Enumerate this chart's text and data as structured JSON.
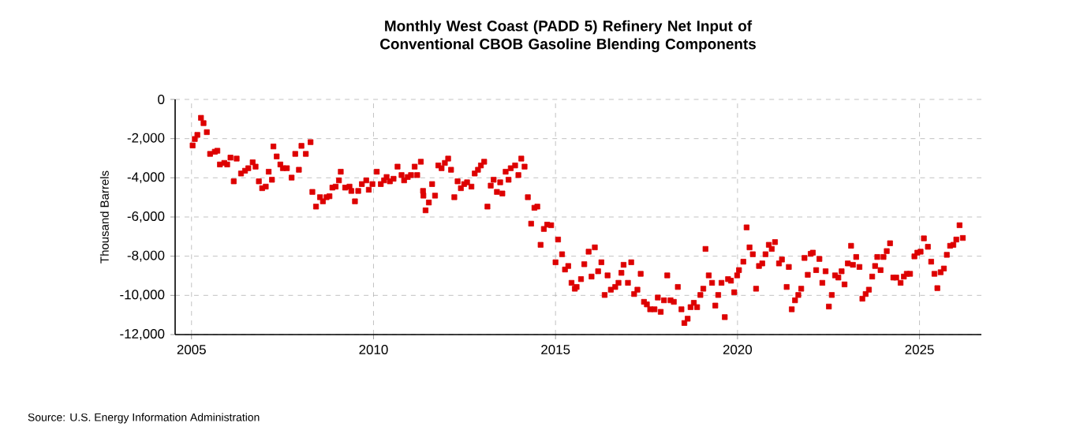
{
  "chart_data": {
    "type": "scatter",
    "title": "Monthly West Coast (PADD 5) Refinery Net Input of Conventional CBOB Gasoline Blending Components",
    "ylabel": "Thousand Barrels",
    "annotations": [
      "Source: U.S. Energy Information Administration"
    ],
    "xlim": [
      2004.55,
      2026.7
    ],
    "xticks": [
      2005,
      2010,
      2015,
      2020,
      2025
    ],
    "ylim": [
      -12000,
      0
    ],
    "yticks": [
      {
        "value": -12000,
        "label": "-12,000"
      },
      {
        "value": -10000,
        "label": "-10,000"
      },
      {
        "value": -8000,
        "label": "-8,000"
      },
      {
        "value": -6000,
        "label": "-6,000"
      },
      {
        "value": -4000,
        "label": "-4,000"
      },
      {
        "value": -2000,
        "label": "-2,000"
      },
      0
    ],
    "grid": true,
    "marker": "square",
    "series": [
      {
        "color": "#dd0000",
        "x": [
          2005.03,
          2005.09,
          2005.16,
          2005.26,
          2005.33,
          2005.42,
          2005.51,
          2005.64,
          2005.71,
          2005.78,
          2005.9,
          2005.98,
          2006.07,
          2006.16,
          2006.24,
          2006.36,
          2006.47,
          2006.56,
          2006.68,
          2006.76,
          2006.85,
          2006.94,
          2007.04,
          2007.12,
          2007.21,
          2007.25,
          2007.34,
          2007.44,
          2007.51,
          2007.62,
          2007.75,
          2007.85,
          2007.95,
          2008.02,
          2008.14,
          2008.27,
          2008.32,
          2008.42,
          2008.53,
          2008.61,
          2008.71,
          2008.79,
          2008.87,
          2008.96,
          2009.05,
          2009.1,
          2009.22,
          2009.34,
          2009.39,
          2009.49,
          2009.58,
          2009.68,
          2009.8,
          2009.87,
          2009.97,
          2010.09,
          2010.2,
          2010.29,
          2010.36,
          2010.45,
          2010.55,
          2010.66,
          2010.77,
          2010.84,
          2010.94,
          2011.03,
          2011.13,
          2011.2,
          2011.3,
          2011.36,
          2011.37,
          2011.43,
          2011.52,
          2011.61,
          2011.69,
          2011.78,
          2011.87,
          2011.96,
          2012.05,
          2012.13,
          2012.22,
          2012.31,
          2012.4,
          2012.49,
          2012.57,
          2012.69,
          2012.78,
          2012.87,
          2012.95,
          2013.04,
          2013.13,
          2013.22,
          2013.3,
          2013.39,
          2013.48,
          2013.54,
          2013.63,
          2013.71,
          2013.77,
          2013.89,
          2013.98,
          2014.06,
          2014.15,
          2014.24,
          2014.33,
          2014.42,
          2014.5,
          2014.59,
          2014.68,
          2014.77,
          2014.88,
          2015.0,
          2015.07,
          2015.18,
          2015.26,
          2015.35,
          2015.44,
          2015.53,
          2015.58,
          2015.7,
          2015.79,
          2015.91,
          2015.99,
          2016.08,
          2016.17,
          2016.26,
          2016.35,
          2016.43,
          2016.52,
          2016.64,
          2016.73,
          2016.81,
          2016.87,
          2016.99,
          2017.08,
          2017.16,
          2017.25,
          2017.34,
          2017.43,
          2017.51,
          2017.6,
          2017.72,
          2017.81,
          2017.89,
          2017.98,
          2018.07,
          2018.16,
          2018.25,
          2018.36,
          2018.46,
          2018.54,
          2018.63,
          2018.71,
          2018.8,
          2018.89,
          2018.98,
          2019.06,
          2019.12,
          2019.21,
          2019.3,
          2019.39,
          2019.47,
          2019.56,
          2019.65,
          2019.74,
          2019.82,
          2019.91,
          2019.99,
          2020.04,
          2020.16,
          2020.25,
          2020.33,
          2020.42,
          2020.51,
          2020.59,
          2020.68,
          2020.77,
          2020.86,
          2020.94,
          2021.03,
          2021.14,
          2021.22,
          2021.35,
          2021.41,
          2021.49,
          2021.58,
          2021.67,
          2021.75,
          2021.84,
          2021.93,
          2022.01,
          2022.07,
          2022.16,
          2022.25,
          2022.33,
          2022.42,
          2022.51,
          2022.59,
          2022.68,
          2022.77,
          2022.86,
          2022.94,
          2023.03,
          2023.12,
          2023.17,
          2023.26,
          2023.35,
          2023.43,
          2023.52,
          2023.61,
          2023.7,
          2023.78,
          2023.84,
          2023.93,
          2024.01,
          2024.1,
          2024.19,
          2024.28,
          2024.36,
          2024.48,
          2024.57,
          2024.65,
          2024.74,
          2024.86,
          2024.94,
          2025.03,
          2025.12,
          2025.23,
          2025.32,
          2025.41,
          2025.49,
          2025.58,
          2025.67,
          2025.75,
          2025.84,
          2025.93,
          2026.01,
          2026.1,
          2026.19
        ],
        "values": [
          -2350,
          -2020,
          -1810,
          -940,
          -1210,
          -1670,
          -2780,
          -2670,
          -2620,
          -3320,
          -3240,
          -3320,
          -2970,
          -4180,
          -3020,
          -3780,
          -3640,
          -3510,
          -3210,
          -3430,
          -4180,
          -4530,
          -4450,
          -3690,
          -4100,
          -2400,
          -2910,
          -3320,
          -3510,
          -3510,
          -3990,
          -2780,
          -3590,
          -2370,
          -2780,
          -2180,
          -4720,
          -5470,
          -4990,
          -5200,
          -4990,
          -4940,
          -4500,
          -4450,
          -4130,
          -3690,
          -4500,
          -4450,
          -4670,
          -5200,
          -4670,
          -4320,
          -4130,
          -4610,
          -4320,
          -3690,
          -4320,
          -4130,
          -3960,
          -4180,
          -4050,
          -3430,
          -3860,
          -4130,
          -3960,
          -3860,
          -3430,
          -3860,
          -3180,
          -4670,
          -4910,
          -5660,
          -5260,
          -4320,
          -4910,
          -3370,
          -3510,
          -3240,
          -3020,
          -3590,
          -4990,
          -4180,
          -4530,
          -4320,
          -4230,
          -4450,
          -3780,
          -3590,
          -3370,
          -3180,
          -5470,
          -4400,
          -4100,
          -4720,
          -4230,
          -4800,
          -3690,
          -4100,
          -3510,
          -3370,
          -3860,
          -3020,
          -3430,
          -4990,
          -6340,
          -5530,
          -5470,
          -7420,
          -6610,
          -6390,
          -6420,
          -8310,
          -7150,
          -7900,
          -8680,
          -8500,
          -9360,
          -9660,
          -9570,
          -9170,
          -8410,
          -7770,
          -9040,
          -7550,
          -8770,
          -8310,
          -9980,
          -8980,
          -9710,
          -9570,
          -9360,
          -8850,
          -8440,
          -9360,
          -8310,
          -9930,
          -9710,
          -8900,
          -10330,
          -10460,
          -10710,
          -10710,
          -10110,
          -10840,
          -10250,
          -8980,
          -10250,
          -10330,
          -9570,
          -10710,
          -11410,
          -11190,
          -10600,
          -10380,
          -10600,
          -9980,
          -9660,
          -7630,
          -8980,
          -9360,
          -10520,
          -9980,
          -9360,
          -11110,
          -9170,
          -9250,
          -9840,
          -8980,
          -8710,
          -8280,
          -6530,
          -7550,
          -7900,
          -9660,
          -8500,
          -8370,
          -7900,
          -7420,
          -7630,
          -7280,
          -8370,
          -8170,
          -9570,
          -8550,
          -10710,
          -10250,
          -9980,
          -9660,
          -8090,
          -8950,
          -7880,
          -7820,
          -8710,
          -8140,
          -9360,
          -8770,
          -10570,
          -9980,
          -8980,
          -9090,
          -8770,
          -9440,
          -8370,
          -7470,
          -8440,
          -8040,
          -8550,
          -10170,
          -9930,
          -9710,
          -9040,
          -8500,
          -8040,
          -8710,
          -8040,
          -7740,
          -7340,
          -9090,
          -9090,
          -9360,
          -9040,
          -8900,
          -8900,
          -8010,
          -7820,
          -7770,
          -7090,
          -7520,
          -8280,
          -8900,
          -9630,
          -8820,
          -8630,
          -7930,
          -7470,
          -7420,
          -7150,
          -6420,
          -7070
        ]
      }
    ]
  }
}
